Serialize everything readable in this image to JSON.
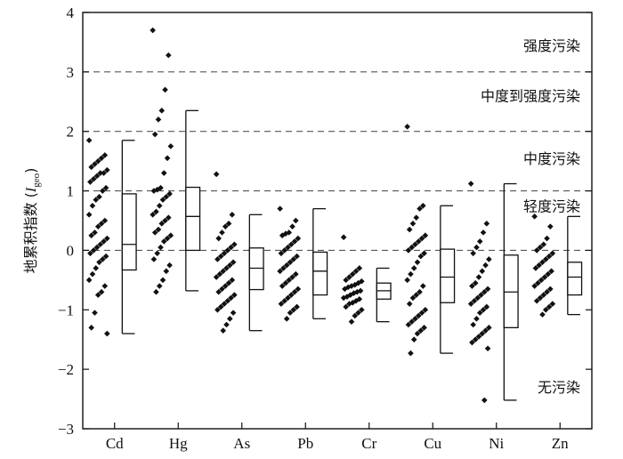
{
  "chart_data": {
    "type": "scatter",
    "title": "",
    "ylabel": "地累积指数 (",
    "ylabel_italic": "I",
    "ylabel_sub": "geo",
    "ylabel_close": ")",
    "ylim": [
      -3,
      4
    ],
    "yticks": [
      -3,
      -2,
      -1,
      0,
      1,
      2,
      3,
      4
    ],
    "grid": false,
    "categories": [
      "Cd",
      "Hg",
      "As",
      "Pb",
      "Cr",
      "Cu",
      "Ni",
      "Zn"
    ],
    "thresholds": [
      0,
      1,
      2,
      3
    ],
    "zones": [
      {
        "label": "强度污染",
        "y": 3.45
      },
      {
        "label": "中度到强度污染",
        "y": 2.6
      },
      {
        "label": "中度污染",
        "y": 1.55
      },
      {
        "label": "轻度污染",
        "y": 0.75
      },
      {
        "label": "无污染",
        "y": -2.3
      }
    ],
    "boxes": [
      {
        "name": "Cd",
        "whisker_low": -1.4,
        "q1": -0.33,
        "median": 0.1,
        "q3": 0.95,
        "whisker_high": 1.85
      },
      {
        "name": "Hg",
        "whisker_low": -0.68,
        "q1": 0.0,
        "median": 0.57,
        "q3": 1.06,
        "whisker_high": 2.35
      },
      {
        "name": "As",
        "whisker_low": -1.35,
        "q1": -0.66,
        "median": -0.3,
        "q3": 0.04,
        "whisker_high": 0.6
      },
      {
        "name": "Pb",
        "whisker_low": -1.15,
        "q1": -0.75,
        "median": -0.35,
        "q3": -0.03,
        "whisker_high": 0.7
      },
      {
        "name": "Cr",
        "whisker_low": -1.2,
        "q1": -0.82,
        "median": -0.68,
        "q3": -0.55,
        "whisker_high": -0.3
      },
      {
        "name": "Cu",
        "whisker_low": -1.73,
        "q1": -0.88,
        "median": -0.45,
        "q3": 0.02,
        "whisker_high": 0.75
      },
      {
        "name": "Ni",
        "whisker_low": -2.52,
        "q1": -1.3,
        "median": -0.7,
        "q3": -0.08,
        "whisker_high": 1.12
      },
      {
        "name": "Zn",
        "whisker_low": -1.08,
        "q1": -0.75,
        "median": -0.45,
        "q3": -0.2,
        "whisker_high": 0.57
      }
    ],
    "points": {
      "Cd": [
        1.85,
        1.6,
        1.55,
        1.5,
        1.45,
        1.4,
        1.35,
        1.3,
        1.3,
        1.25,
        1.2,
        1.15,
        1.05,
        1.0,
        0.9,
        0.85,
        0.75,
        0.6,
        0.5,
        0.45,
        0.4,
        0.3,
        0.25,
        0.2,
        0.15,
        0.1,
        0.05,
        0.0,
        -0.05,
        -0.1,
        -0.15,
        -0.2,
        -0.3,
        -0.4,
        -0.5,
        -0.6,
        -0.7,
        -0.75,
        -1.05,
        -1.3,
        -1.4
      ],
      "Hg": [
        3.7,
        3.28,
        2.7,
        2.35,
        2.2,
        1.95,
        1.75,
        1.55,
        1.3,
        1.05,
        1.02,
        1.0,
        0.95,
        0.9,
        0.85,
        0.75,
        0.65,
        0.6,
        0.55,
        0.5,
        0.45,
        0.35,
        0.3,
        0.25,
        0.2,
        0.15,
        0.05,
        -0.05,
        -0.15,
        -0.25,
        -0.35,
        -0.5,
        -0.6,
        -0.7
      ],
      "As": [
        1.28,
        0.6,
        0.45,
        0.4,
        0.3,
        0.2,
        0.1,
        0.05,
        0.0,
        -0.05,
        -0.1,
        -0.15,
        -0.2,
        -0.25,
        -0.3,
        -0.35,
        -0.4,
        -0.45,
        -0.5,
        -0.55,
        -0.6,
        -0.65,
        -0.7,
        -0.75,
        -0.8,
        -0.85,
        -0.9,
        -0.95,
        -1.0,
        -1.05,
        -1.15,
        -1.25,
        -1.35
      ],
      "Pb": [
        0.7,
        0.5,
        0.4,
        0.3,
        0.28,
        0.25,
        0.2,
        0.15,
        0.1,
        0.05,
        0.0,
        -0.05,
        -0.1,
        -0.15,
        -0.2,
        -0.25,
        -0.3,
        -0.35,
        -0.4,
        -0.45,
        -0.5,
        -0.55,
        -0.6,
        -0.65,
        -0.7,
        -0.75,
        -0.8,
        -0.85,
        -0.9,
        -0.95,
        -1.0,
        -1.05,
        -1.15
      ],
      "Cr": [
        0.22,
        -0.3,
        -0.35,
        -0.4,
        -0.45,
        -0.5,
        -0.52,
        -0.55,
        -0.58,
        -0.6,
        -0.62,
        -0.65,
        -0.68,
        -0.7,
        -0.72,
        -0.75,
        -0.78,
        -0.8,
        -0.82,
        -0.85,
        -0.88,
        -0.9,
        -0.95,
        -1.0,
        -1.05,
        -1.1,
        -1.2
      ],
      "Cu": [
        2.08,
        0.75,
        0.7,
        0.55,
        0.45,
        0.35,
        0.25,
        0.2,
        0.15,
        0.1,
        0.05,
        0.0,
        -0.05,
        -0.1,
        -0.2,
        -0.3,
        -0.4,
        -0.5,
        -0.6,
        -0.7,
        -0.75,
        -0.8,
        -0.9,
        -1.0,
        -1.05,
        -1.1,
        -1.15,
        -1.2,
        -1.25,
        -1.3,
        -1.35,
        -1.4,
        -1.5,
        -1.73
      ],
      "Ni": [
        1.12,
        0.45,
        0.3,
        0.15,
        0.05,
        -0.05,
        -0.15,
        -0.25,
        -0.35,
        -0.45,
        -0.55,
        -0.6,
        -0.65,
        -0.7,
        -0.75,
        -0.8,
        -0.85,
        -0.9,
        -0.95,
        -1.0,
        -1.05,
        -1.15,
        -1.25,
        -1.3,
        -1.35,
        -1.4,
        -1.45,
        -1.5,
        -1.55,
        -1.65,
        -2.52
      ],
      "Zn": [
        0.57,
        0.4,
        0.2,
        0.1,
        0.05,
        0.0,
        -0.05,
        -0.1,
        -0.15,
        -0.2,
        -0.25,
        -0.3,
        -0.35,
        -0.4,
        -0.45,
        -0.5,
        -0.55,
        -0.6,
        -0.65,
        -0.7,
        -0.75,
        -0.8,
        -0.85,
        -0.9,
        -0.95,
        -1.0,
        -1.08
      ]
    }
  }
}
